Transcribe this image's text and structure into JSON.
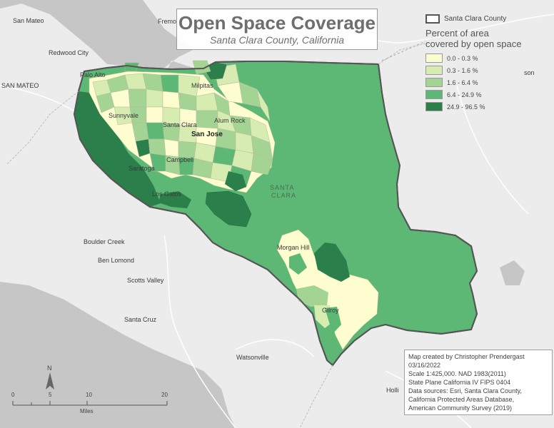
{
  "title": "Open Space Coverage",
  "subtitle": "Santa Clara County, California",
  "legend": {
    "county_label": "Santa Clara County",
    "title_line1": "Percent of area",
    "title_line2": "covered by open space",
    "classes": [
      {
        "label": "0.0 - 0.3 %",
        "color": "#fdfdd0"
      },
      {
        "label": "0.3 - 1.6 %",
        "color": "#d6ecb0"
      },
      {
        "label": "1.6 - 6.4 %",
        "color": "#a3d493"
      },
      {
        "label": "6.4 - 24.9 %",
        "color": "#5cb874"
      },
      {
        "label": "24.9 - 96.5 %",
        "color": "#2b7f4a"
      }
    ]
  },
  "credits": [
    "Map created by Christopher Prendergast",
    "03/16/2022",
    "Scale 1:425,000. NAD 1983(2011)",
    "State Plane California IV FIPS 0404",
    "Data sources: Esri, Santa Clara County,",
    "California Protected Areas Database,",
    "American Community Survey (2019)"
  ],
  "scale_bar": {
    "ticks": [
      "0",
      "5",
      "10",
      "20"
    ],
    "unit": "Miles"
  },
  "north_label": "N",
  "places": {
    "san_mateo_city": "San Mateo",
    "redwood_city": "Redwood City",
    "san_mateo_county": "SAN MATEO",
    "palo_alto": "Palo Alto",
    "milpitas": "Milpitas",
    "sunnyvale": "Sunnyvale",
    "santa_clara_city": "Santa Clara",
    "alum_rock": "Alum Rock",
    "san_jose": "San Jose",
    "campbell": "Campbell",
    "saratoga": "Saratoga",
    "los_gatos": "Los Gatos",
    "santa_clara_county_1": "SANTA",
    "santa_clara_county_2": "CLARA",
    "boulder_creek": "Boulder Creek",
    "ben_lomond": "Ben Lomond",
    "scotts_valley": "Scotts Valley",
    "santa_cruz": "Santa Cruz",
    "watsonville": "Watsonville",
    "morgan_hill": "Morgan Hill",
    "gilroy": "Gilroy",
    "fremont_partial": "Fremo",
    "edge_son": "son",
    "edge_holli": "Holli"
  },
  "colors": {
    "background": "#e9e9e9",
    "water": "#c4c4c4",
    "county_base": "#5cb874",
    "county_outline": "#555555"
  }
}
